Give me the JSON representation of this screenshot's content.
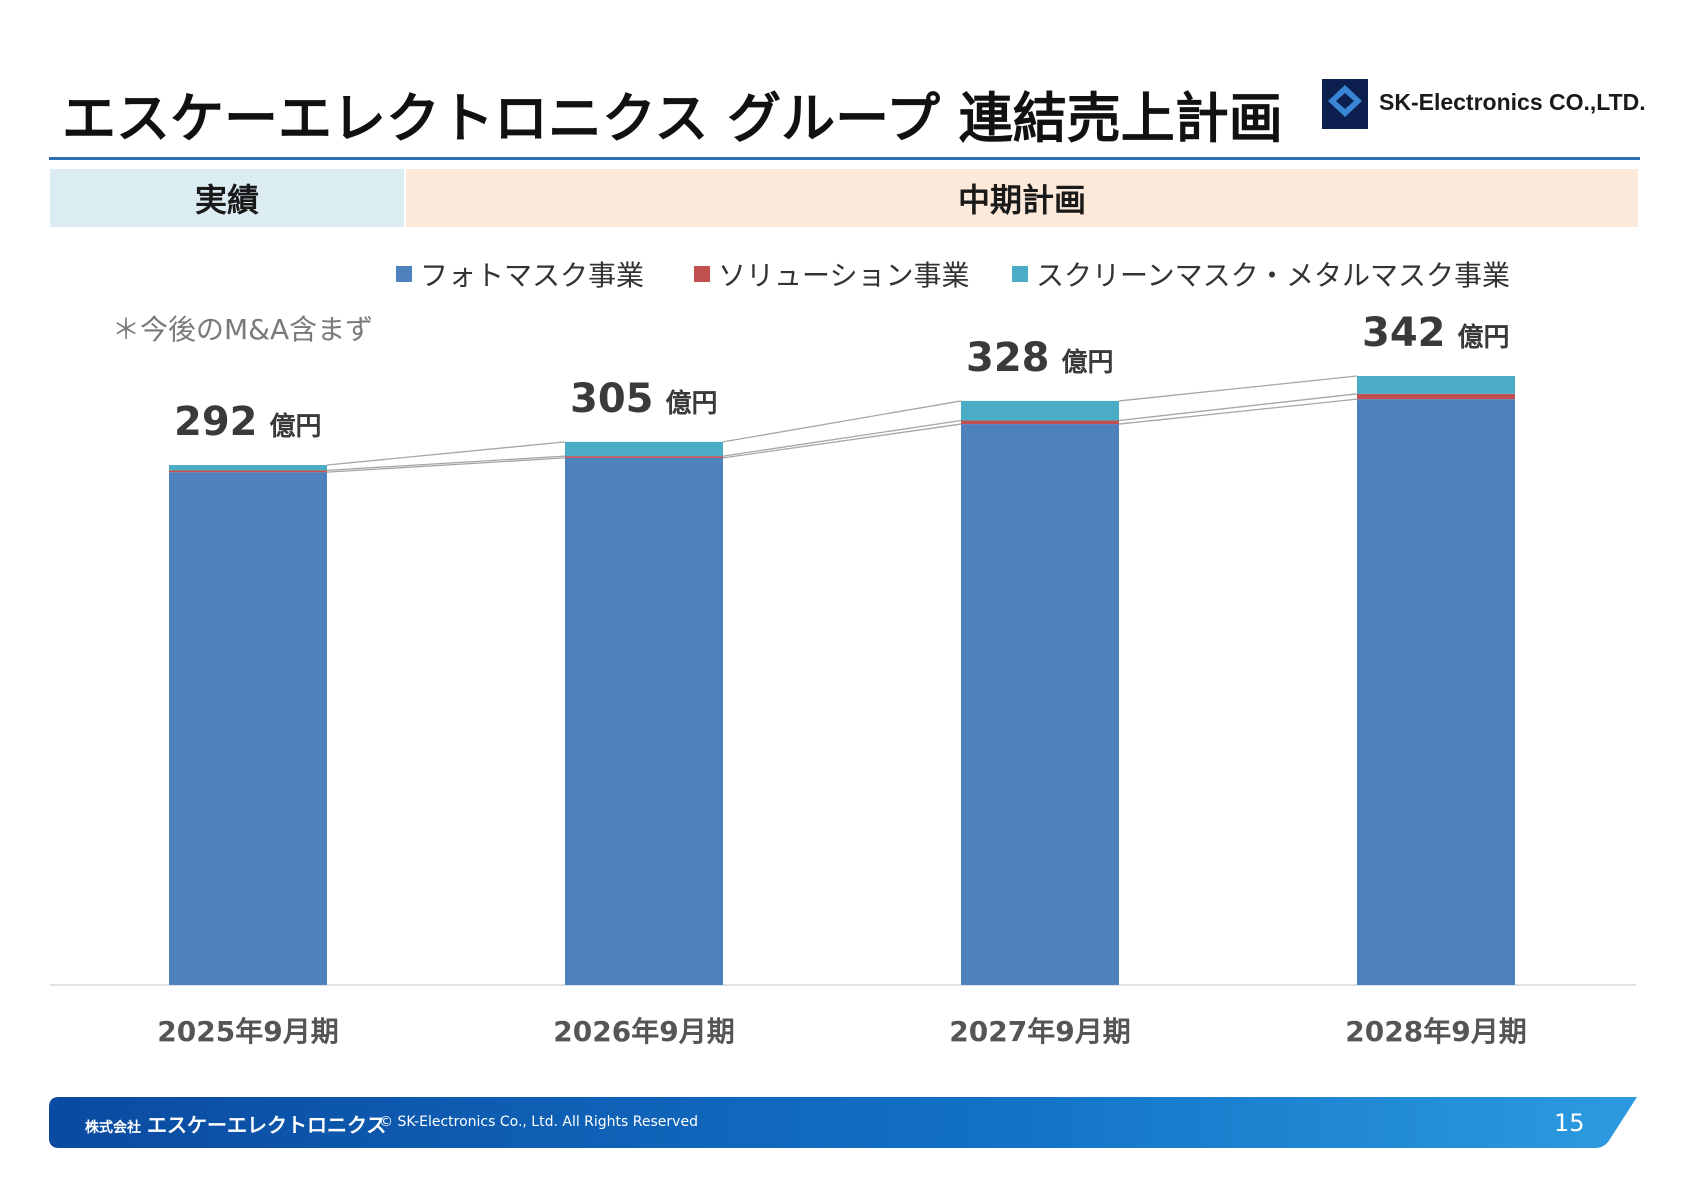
{
  "header": {
    "title": "エスケーエレクトロニクス グループ 連結売上計画",
    "logo_text": "SK-Electronics CO.,LTD.",
    "logo_mark_text": "SK-Electronics"
  },
  "bands": {
    "actual": "実績",
    "plan": "中期計画"
  },
  "legend": [
    {
      "label": "フォトマスク事業",
      "color": "#4f81bd"
    },
    {
      "label": "ソリューション事業",
      "color": "#c0504d"
    },
    {
      "label": "スクリーンマスク・メタルマスク事業",
      "color": "#4bacc6"
    }
  ],
  "note": "＊今後のM&A含まず",
  "chart_data": {
    "type": "bar",
    "stacked": true,
    "categories": [
      "2025年9月期",
      "2026年9月期",
      "2027年9月期",
      "2028年9月期"
    ],
    "series": [
      {
        "name": "フォトマスク事業",
        "color": "#4f81bd",
        "values": [
          288,
          296,
          315,
          329
        ]
      },
      {
        "name": "ソリューション事業",
        "color": "#c0504d",
        "values": [
          1,
          1,
          2,
          3
        ]
      },
      {
        "name": "スクリーンマスク・メタルマスク事業",
        "color": "#4bacc6",
        "values": [
          3,
          8,
          11,
          10
        ]
      }
    ],
    "totals": [
      292,
      305,
      328,
      342
    ],
    "total_unit": "億円",
    "ylim": [
      0,
      342
    ],
    "grid": false,
    "legend_position": "top"
  },
  "footer": {
    "company_prefix": "株式会社",
    "company": "エスケーエレクトロニクス",
    "copyright": "© SK-Electronics Co., Ltd. All Rights Reserved",
    "page_number": "15",
    "gradient_start": "#0a4aa0",
    "gradient_end": "#2d9be0"
  }
}
